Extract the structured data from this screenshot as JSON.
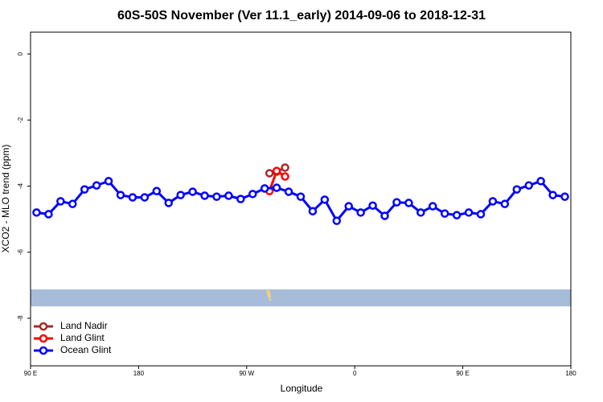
{
  "chart_data": {
    "type": "line",
    "title": "60S-50S November (Ver 11.1_early)   2014-09-06 to 2018-12-31",
    "x_label": "Longitude",
    "y_label": "XCO2 - MLO trend (ppm)",
    "xlim": [
      90,
      540
    ],
    "ylim": [
      -9.44,
      0.66
    ],
    "xticks": [
      {
        "value": 90,
        "label": "90 E"
      },
      180,
      {
        "value": 270,
        "label": "90 W"
      },
      {
        "value": 360,
        "label": "0"
      },
      {
        "value": 450,
        "label": "90 E"
      },
      {
        "value": 540,
        "label": "180"
      }
    ],
    "yticks": [
      0,
      -2,
      -4,
      -6,
      -8
    ],
    "legend_position": "bottom-left",
    "series": [
      {
        "name": "Land Nadir",
        "color": "#a52a2a",
        "x": [
          289,
          295,
          302
        ],
        "values": [
          -3.61,
          -3.56,
          -3.44
        ]
      },
      {
        "name": "Land Glint",
        "color": "#ff0000",
        "x": [
          289,
          295,
          302
        ],
        "values": [
          -4.15,
          -3.54,
          -3.71
        ]
      },
      {
        "name": "Ocean Glint",
        "color": "#0000ff",
        "x": [
          95,
          105,
          115,
          125,
          135,
          145,
          155,
          165,
          175,
          185,
          195,
          205,
          215,
          225,
          235,
          245,
          255,
          265,
          275,
          285,
          295,
          305,
          315,
          325,
          335,
          345,
          355,
          365,
          375,
          385,
          395,
          405,
          415,
          425,
          435,
          445,
          455,
          465,
          475,
          485,
          495,
          505,
          515,
          525,
          535
        ],
        "values": [
          -4.8,
          -4.85,
          -4.46,
          -4.54,
          -4.1,
          -3.98,
          -3.85,
          -4.27,
          -4.34,
          -4.34,
          -4.15,
          -4.51,
          -4.27,
          -4.17,
          -4.29,
          -4.32,
          -4.29,
          -4.39,
          -4.24,
          -4.07,
          -4.05,
          -4.17,
          -4.32,
          -4.76,
          -4.41,
          -5.05,
          -4.61,
          -4.8,
          -4.59,
          -4.9,
          -4.49,
          -4.51,
          -4.8,
          -4.61,
          -4.83,
          -4.88,
          -4.8,
          -4.85,
          -4.46,
          -4.54,
          -4.1,
          -3.98,
          -3.85,
          -4.27,
          -4.32
        ]
      }
    ]
  }
}
